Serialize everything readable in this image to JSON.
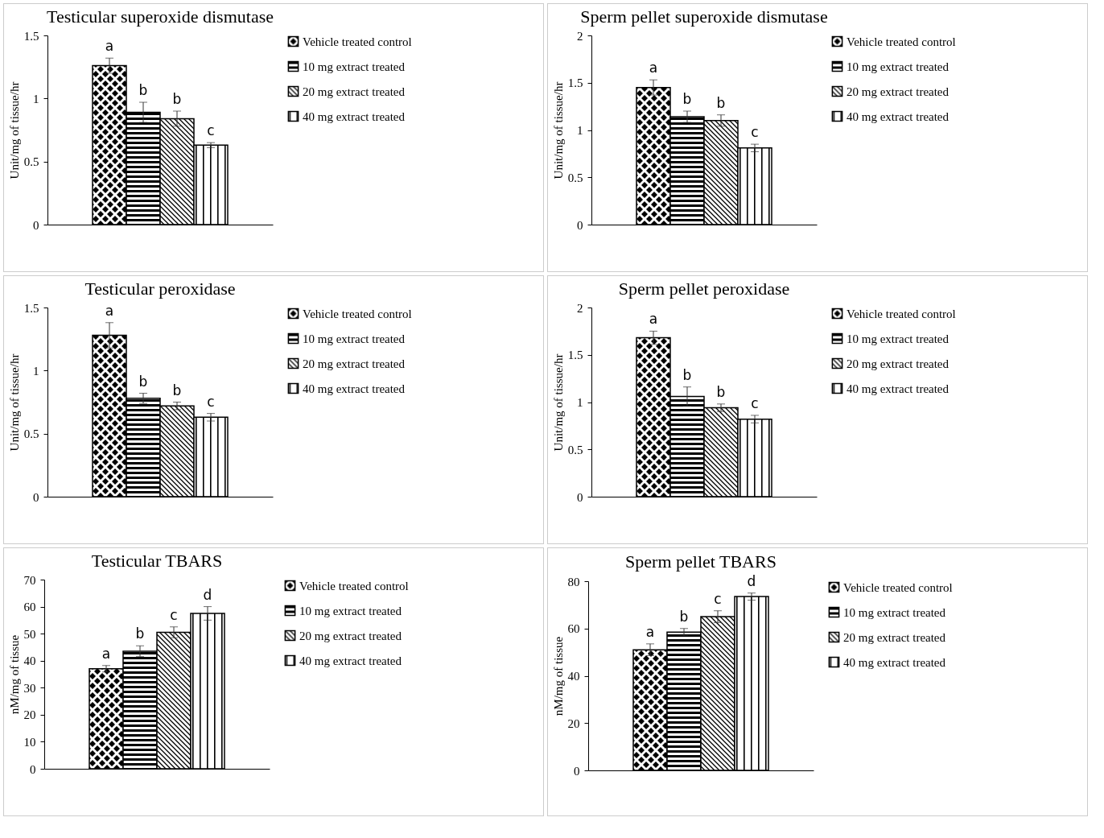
{
  "chart_data": [
    {
      "type": "bar",
      "title": "Testicular superoxide dismutase",
      "ylabel": "Unit/mg of tissue/hr",
      "categories": [
        null
      ],
      "ylim": [
        0,
        1.5
      ],
      "yticks": [
        0,
        0.5,
        1,
        1.5
      ],
      "grid": false,
      "legend": "right",
      "tick_labels": "y",
      "series": [
        {
          "name": "Vehicle treated control",
          "color": "#000000",
          "values": [
            1.26
          ],
          "errors": [
            0.06
          ],
          "value_labels": [
            "a"
          ]
        },
        {
          "name": "10 mg extract treated",
          "color": "#000000",
          "values": [
            0.89
          ],
          "errors": [
            0.08
          ],
          "value_labels": [
            "b"
          ]
        },
        {
          "name": "20 mg extract treated",
          "color": "#000000",
          "values": [
            0.84
          ],
          "errors": [
            0.06
          ],
          "value_labels": [
            "b"
          ]
        },
        {
          "name": "40 mg extract treated",
          "color": "#000000",
          "values": [
            0.63
          ],
          "errors": [
            0.02
          ],
          "value_labels": [
            "c"
          ]
        }
      ]
    },
    {
      "type": "bar",
      "title": "Sperm pellet superoxide dismutase",
      "ylabel": "Unit/mg of tissue/hr",
      "categories": [
        null
      ],
      "ylim": [
        0,
        2
      ],
      "yticks": [
        0,
        0.5,
        1,
        1.5,
        2
      ],
      "grid": false,
      "legend": "right",
      "tick_labels": "y",
      "series": [
        {
          "name": "Vehicle treated control",
          "color": "#000000",
          "values": [
            1.45
          ],
          "errors": [
            0.08
          ],
          "value_labels": [
            "a"
          ]
        },
        {
          "name": "10 mg extract treated",
          "color": "#000000",
          "values": [
            1.14
          ],
          "errors": [
            0.06
          ],
          "value_labels": [
            "b"
          ]
        },
        {
          "name": "20 mg extract treated",
          "color": "#000000",
          "values": [
            1.1
          ],
          "errors": [
            0.06
          ],
          "value_labels": [
            "b"
          ]
        },
        {
          "name": "40 mg extract treated",
          "color": "#000000",
          "values": [
            0.81
          ],
          "errors": [
            0.04
          ],
          "value_labels": [
            "c"
          ]
        }
      ]
    },
    {
      "type": "bar",
      "title": "Testicular peroxidase",
      "ylabel": "Unit/mg of tissue/hr",
      "categories": [
        null
      ],
      "ylim": [
        0,
        1.5
      ],
      "yticks": [
        0,
        0.5,
        1,
        1.5
      ],
      "grid": false,
      "legend": "right",
      "tick_labels": "y",
      "series": [
        {
          "name": "Vehicle treated control",
          "color": "#000000",
          "values": [
            1.28
          ],
          "errors": [
            0.1
          ],
          "value_labels": [
            "a"
          ]
        },
        {
          "name": "10 mg extract treated",
          "color": "#000000",
          "values": [
            0.78
          ],
          "errors": [
            0.04
          ],
          "value_labels": [
            "b"
          ]
        },
        {
          "name": "20 mg extract treated",
          "color": "#000000",
          "values": [
            0.72
          ],
          "errors": [
            0.03
          ],
          "value_labels": [
            "b"
          ]
        },
        {
          "name": "40 mg extract treated",
          "color": "#000000",
          "values": [
            0.63
          ],
          "errors": [
            0.03
          ],
          "value_labels": [
            "c"
          ]
        }
      ]
    },
    {
      "type": "bar",
      "title": "Sperm pellet peroxidase",
      "ylabel": "Unit/mg of tissue/hr",
      "categories": [
        null
      ],
      "ylim": [
        0,
        2
      ],
      "yticks": [
        0,
        0.5,
        1,
        1.5,
        2
      ],
      "grid": false,
      "legend": "right",
      "tick_labels": "y",
      "series": [
        {
          "name": "Vehicle treated control",
          "color": "#000000",
          "values": [
            1.68
          ],
          "errors": [
            0.07
          ],
          "value_labels": [
            "a"
          ]
        },
        {
          "name": "10 mg extract treated",
          "color": "#000000",
          "values": [
            1.06
          ],
          "errors": [
            0.1
          ],
          "value_labels": [
            "b"
          ]
        },
        {
          "name": "20 mg extract treated",
          "color": "#000000",
          "values": [
            0.94
          ],
          "errors": [
            0.04
          ],
          "value_labels": [
            "b"
          ]
        },
        {
          "name": "40 mg extract treated",
          "color": "#000000",
          "values": [
            0.82
          ],
          "errors": [
            0.04
          ],
          "value_labels": [
            "c"
          ]
        }
      ]
    },
    {
      "type": "bar",
      "title": "Testicular TBARS",
      "ylabel": "nM/mg of tissue",
      "categories": [
        null
      ],
      "ylim": [
        0,
        70
      ],
      "yticks": [
        0,
        10,
        20,
        30,
        40,
        50,
        60,
        70
      ],
      "grid": false,
      "legend": "right",
      "tick_labels": "y",
      "series": [
        {
          "name": "Vehicle treated control",
          "color": "#000000",
          "values": [
            37
          ],
          "errors": [
            1.2
          ],
          "value_labels": [
            "a"
          ]
        },
        {
          "name": "10 mg extract treated",
          "color": "#000000",
          "values": [
            43.5
          ],
          "errors": [
            2
          ],
          "value_labels": [
            "b"
          ]
        },
        {
          "name": "20 mg extract treated",
          "color": "#000000",
          "values": [
            50.5
          ],
          "errors": [
            2
          ],
          "value_labels": [
            "c"
          ]
        },
        {
          "name": "40 mg extract treated",
          "color": "#000000",
          "values": [
            57.5
          ],
          "errors": [
            2.5
          ],
          "value_labels": [
            "d"
          ]
        }
      ]
    },
    {
      "type": "bar",
      "title": "Sperm pellet TBARS",
      "ylabel": "nM/mg of tissue",
      "categories": [
        null
      ],
      "ylim": [
        0,
        80
      ],
      "yticks": [
        0,
        20,
        40,
        60,
        80
      ],
      "grid": false,
      "legend": "right",
      "tick_labels": "y",
      "series": [
        {
          "name": "Vehicle treated control",
          "color": "#000000",
          "values": [
            51
          ],
          "errors": [
            2.5
          ],
          "value_labels": [
            "a"
          ]
        },
        {
          "name": "10 mg extract treated",
          "color": "#000000",
          "values": [
            58.5
          ],
          "errors": [
            1.5
          ],
          "value_labels": [
            "b"
          ]
        },
        {
          "name": "20 mg extract treated",
          "color": "#000000",
          "values": [
            65
          ],
          "errors": [
            2.5
          ],
          "value_labels": [
            "c"
          ]
        },
        {
          "name": "40 mg extract treated",
          "color": "#000000",
          "values": [
            73.5
          ],
          "errors": [
            1.5
          ],
          "value_labels": [
            "d"
          ]
        }
      ]
    }
  ]
}
